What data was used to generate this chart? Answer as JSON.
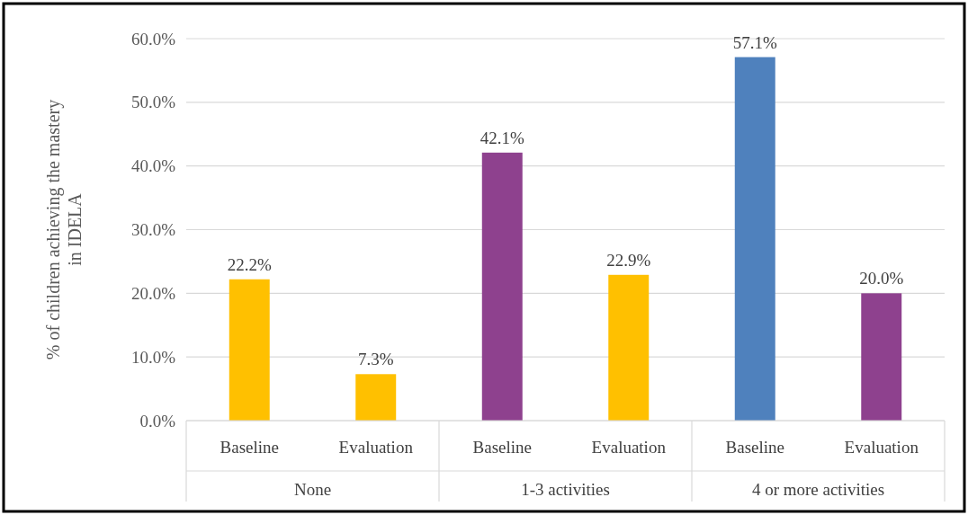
{
  "chart_data": {
    "type": "bar",
    "ylabel": "% of children achieving the mastery in IDELA",
    "categories": [
      "Baseline",
      "Evaluation",
      "Baseline",
      "Evaluation",
      "Baseline",
      "Evaluation"
    ],
    "values": [
      22.2,
      7.3,
      42.1,
      22.9,
      57.1,
      20.0
    ],
    "value_labels": [
      "22.2%",
      "7.3%",
      "42.1%",
      "22.9%",
      "57.1%",
      "20.0%"
    ],
    "colors": [
      "#ffc000",
      "#ffc000",
      "#8e418e",
      "#ffc000",
      "#4f81bd",
      "#8e418e"
    ],
    "annotations": [
      "None",
      "1-3 activities",
      "4 or more activities"
    ],
    "ylim": [
      0,
      60
    ],
    "yticks": [
      {
        "value": 0,
        "label": "0.0%"
      },
      {
        "value": 10,
        "label": "10.0%"
      },
      {
        "value": 20,
        "label": "20.0%"
      },
      {
        "value": 30,
        "label": "30.0%"
      },
      {
        "value": 40,
        "label": "40.0%"
      },
      {
        "value": 50,
        "label": "50.0%"
      },
      {
        "value": 60,
        "label": "60.0%"
      }
    ],
    "grid": "y"
  }
}
